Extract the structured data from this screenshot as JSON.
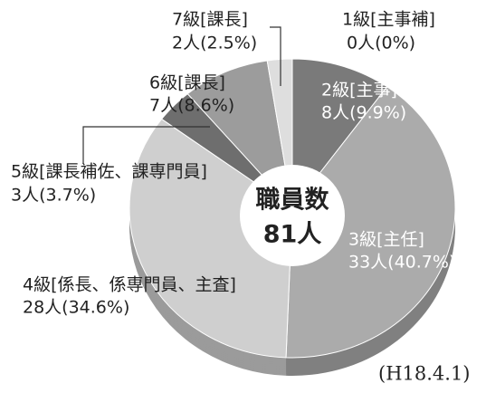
{
  "chart_data": {
    "type": "pie",
    "categories": [
      "1級[主事補]",
      "2級[主事]",
      "3級[主任]",
      "4級[係長、係専門員、主査]",
      "5級[課長補佐、課専門員]",
      "6級[課長]",
      "7級[課長]"
    ],
    "values": [
      0,
      8,
      33,
      28,
      3,
      7,
      2
    ],
    "value_labels": [
      "0人(0%)",
      "8人(9.9%)",
      "33人(40.7%)",
      "28人(34.6%)",
      "3人(3.7%)",
      "7人(8.6%)",
      "2人(2.5%)"
    ],
    "colors": [
      "#888888",
      "#7a7a7a",
      "#ababab",
      "#cfcfcf",
      "#6e6e6e",
      "#9c9c9c",
      "#dedede"
    ],
    "center_label": "職員数",
    "total_label": "81人",
    "note": "(H18.4.1)"
  }
}
